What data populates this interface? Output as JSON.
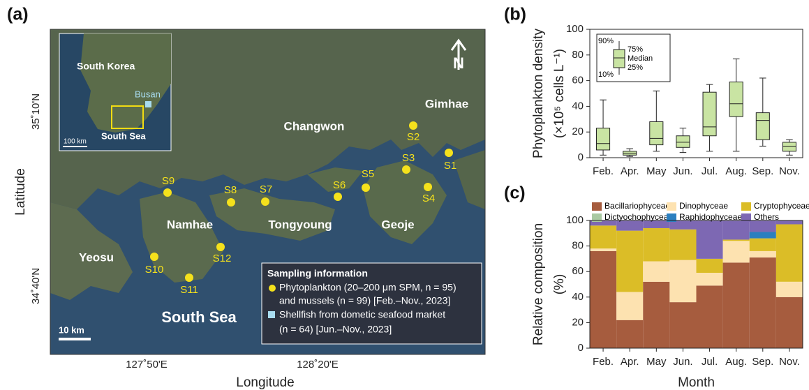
{
  "map": {
    "panel_label": "(a)",
    "x_label": "Longitude",
    "y_label": "Latitude",
    "x_tick_labels": [
      "127˚50'E",
      "128˚20'E"
    ],
    "y_tick_labels": [
      "35˚10'N",
      "34˚40'N"
    ],
    "north": "N",
    "scale_bar": "10 km",
    "sea_label": "South Sea",
    "places": [
      "Gimhae",
      "Changwon",
      "Namhae",
      "Tongyoung",
      "Geoje",
      "Yeosu"
    ],
    "sites": [
      "S1",
      "S2",
      "S3",
      "S4",
      "S5",
      "S6",
      "S7",
      "S8",
      "S9",
      "S10",
      "S11",
      "S12"
    ],
    "inset": {
      "country": "South Korea",
      "city": "Busan",
      "sea": "South Sea",
      "scale_bar": "100 km"
    },
    "info": {
      "title": "Sampling information",
      "lines": [
        "Phytoplankton (20–200 μm SPM, n = 95)",
        "and mussels (n = 99) [Feb.–Nov., 2023]",
        "Shellfish from dometic seafood market",
        "(n = 64) [Jun.–Nov., 2023]"
      ]
    }
  },
  "chart_data": [
    {
      "type": "box",
      "panel_label": "(b)",
      "ylabel": [
        "Phytoplankton density",
        "(×10⁵ cells L⁻¹)"
      ],
      "categories": [
        "Feb.",
        "Apr.",
        "May",
        "Jun.",
        "Jul.",
        "Aug.",
        "Sep.",
        "Nov."
      ],
      "color": "#c9e4a3",
      "ylim": [
        0,
        100
      ],
      "yticks": [
        0,
        20,
        40,
        60,
        80,
        100
      ],
      "legend_labels": [
        "90%",
        "75%",
        "Median",
        "25%",
        "10%"
      ],
      "series": [
        {
          "whislo": [
            2,
            1,
            5,
            4,
            5,
            5,
            9,
            2
          ],
          "q1": [
            6,
            2,
            10,
            8,
            17,
            32,
            14,
            5
          ],
          "median": [
            11,
            3.5,
            15,
            12,
            24,
            42,
            29,
            9
          ],
          "q3": [
            23,
            5,
            28,
            17,
            51,
            59,
            35,
            12
          ],
          "whishi": [
            45,
            7,
            52,
            23,
            57,
            77,
            62,
            14
          ]
        }
      ]
    },
    {
      "type": "stacked_bar",
      "panel_label": "(c)",
      "ylabel": [
        "Relative composition",
        "(%)"
      ],
      "xlabel": "Month",
      "categories": [
        "Feb.",
        "Apr.",
        "May",
        "Jun.",
        "Jul.",
        "Aug.",
        "Sep.",
        "Nov."
      ],
      "ylim": [
        0,
        100
      ],
      "yticks": [
        0,
        20,
        40,
        60,
        80,
        100
      ],
      "series": [
        {
          "name": "Bacillariophyceae",
          "color": "#a65c3e",
          "values": [
            76,
            22,
            52,
            36,
            49,
            67,
            71,
            40
          ]
        },
        {
          "name": "Dinophyceae",
          "color": "#fde2b0",
          "values": [
            2,
            22,
            16,
            33,
            10,
            17,
            5,
            12
          ]
        },
        {
          "name": "Cryptophyceae",
          "color": "#dbbd27",
          "values": [
            18,
            48,
            26,
            24,
            11,
            1,
            10,
            45
          ]
        },
        {
          "name": "Dictyochophyceae",
          "color": "#a9c9a2",
          "values": [
            0,
            0,
            0,
            0,
            0,
            0,
            0,
            0
          ]
        },
        {
          "name": "Raphidophyceae",
          "color": "#2b7fbf",
          "values": [
            0,
            0,
            0,
            0,
            0,
            0,
            5,
            0
          ]
        },
        {
          "name": "Others",
          "color": "#7d68b3",
          "values": [
            4,
            8,
            6,
            7,
            30,
            15,
            9,
            3
          ]
        }
      ]
    }
  ]
}
